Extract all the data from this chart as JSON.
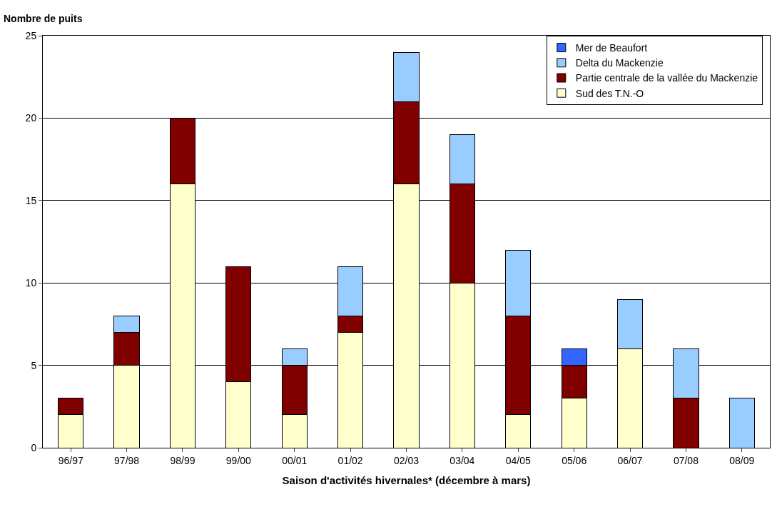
{
  "chart_data": {
    "type": "bar",
    "stacked": true,
    "xlabel": "Saison d'activités hivernales* (décembre à mars)",
    "ylabel": "Nombre de puits",
    "categories": [
      "96/97",
      "97/98",
      "98/99",
      "99/00",
      "00/01",
      "01/02",
      "02/03",
      "03/04",
      "04/05",
      "05/06",
      "06/07",
      "07/08",
      "08/09"
    ],
    "series": [
      {
        "name": "Sud des T.N.-O",
        "color": "#ffffcc",
        "values": [
          2,
          5,
          16,
          4,
          2,
          7,
          16,
          10,
          2,
          3,
          6,
          null,
          null
        ]
      },
      {
        "name": "Partie centrale de la vallée du Mackenzie",
        "color": "#800000",
        "values": [
          1,
          2,
          4,
          7,
          3,
          1,
          5,
          6,
          6,
          2,
          null,
          3,
          null
        ]
      },
      {
        "name": "Delta du Mackenzie",
        "color": "#99ccff",
        "values": [
          null,
          1,
          null,
          null,
          1,
          3,
          3,
          3,
          4,
          null,
          3,
          3,
          3
        ]
      },
      {
        "name": "Mer de Beaufort",
        "color": "#3366ff",
        "values": [
          null,
          null,
          null,
          null,
          null,
          null,
          null,
          null,
          null,
          1,
          null,
          null,
          null
        ]
      }
    ],
    "ylim": [
      0,
      25
    ],
    "yticks": [
      0,
      5,
      10,
      15,
      20,
      25
    ],
    "grid": "y",
    "legend": "top right"
  }
}
